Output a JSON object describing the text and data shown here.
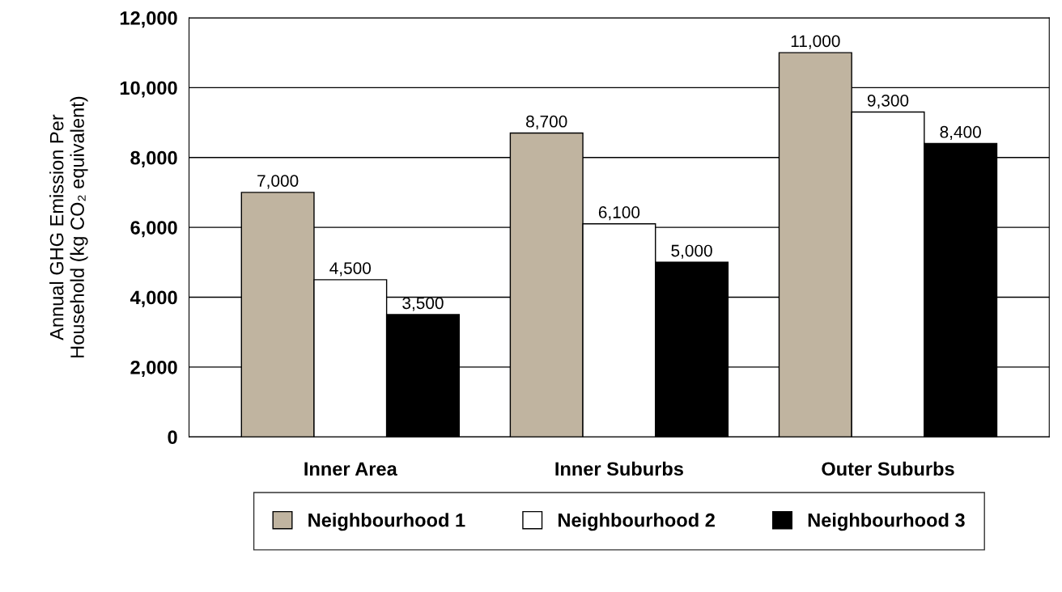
{
  "chart_data": {
    "type": "bar",
    "ylabel": "Annual GHG Emission Per\nHousehold (kg CO₂ equivalent)",
    "categories": [
      "Inner Area",
      "Inner Suburbs",
      "Outer Suburbs"
    ],
    "series": [
      {
        "name": "Neighbourhood 1",
        "color": "#c0b4a0",
        "values": [
          7000,
          8700,
          11000
        ],
        "value_labels": [
          "7,000",
          "8,700",
          "11,000"
        ]
      },
      {
        "name": "Neighbourhood 2",
        "color": "#ffffff",
        "values": [
          4500,
          6100,
          9300
        ],
        "value_labels": [
          "4,500",
          "6,100",
          "9,300"
        ]
      },
      {
        "name": "Neighbourhood 3",
        "color": "#000000",
        "values": [
          3500,
          5000,
          8400
        ],
        "value_labels": [
          "3,500",
          "5,000",
          "8,400"
        ]
      }
    ],
    "ylim": [
      0,
      12000
    ],
    "yticks": [
      {
        "value": 0,
        "label": "0"
      },
      {
        "value": 2000,
        "label": "2,000"
      },
      {
        "value": 4000,
        "label": "4,000"
      },
      {
        "value": 6000,
        "label": "6,000"
      },
      {
        "value": 8000,
        "label": "8,000"
      },
      {
        "value": 10000,
        "label": "10,000"
      },
      {
        "value": 12000,
        "label": "12,000"
      }
    ],
    "grid": "y",
    "legend": "bottom"
  }
}
